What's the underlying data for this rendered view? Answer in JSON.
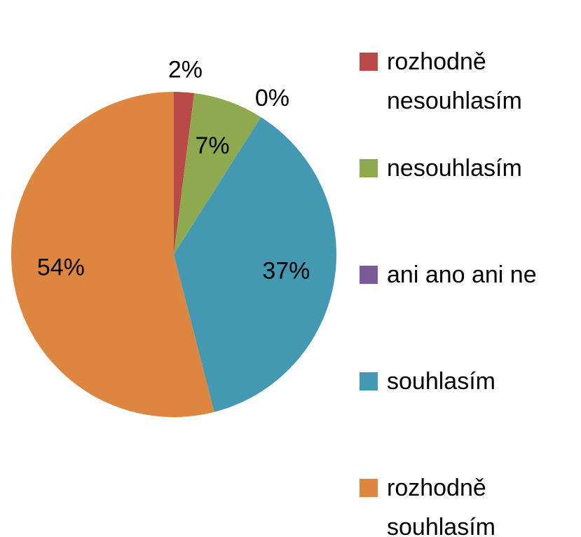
{
  "chart_data": {
    "type": "pie",
    "categories": [
      "rozhodně nesouhlasím",
      "nesouhlasím",
      "ani ano ani ne",
      "souhlasím",
      "rozhodně souhlasím"
    ],
    "values": [
      2,
      7,
      0,
      37,
      54
    ],
    "value_labels": [
      "2%",
      "7%",
      "0%",
      "37%",
      "54%"
    ],
    "colors": [
      "#b94a48",
      "#8faa4e",
      "#7a5c99",
      "#4399b1",
      "#dc8640"
    ],
    "legend": "right"
  }
}
